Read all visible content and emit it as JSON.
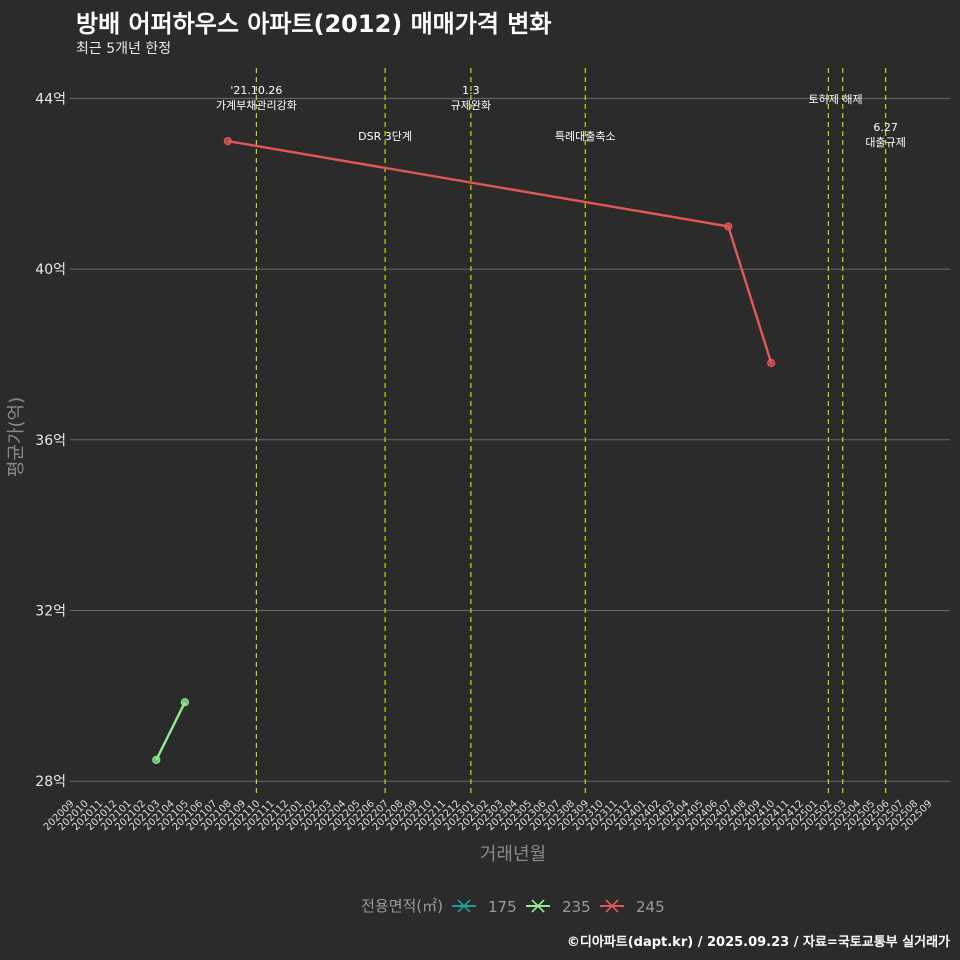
{
  "title": "방배 어퍼하우스 아파트(2012) 매매가격 변화",
  "subtitle": "최근 5개년 한정",
  "caption": "©디아파트(dapt.kr) / 2025.09.23 / 자료=국토교통부 실거래가",
  "colors": {
    "background": "#2b2b2b",
    "grid": "#6a6a6a",
    "vline": "#d4d400",
    "s175": "#1f9c96",
    "s235": "#90ee90",
    "s245": "#e05858"
  },
  "chart_data": {
    "type": "line",
    "xlabel": "거래년월",
    "ylabel": "평균가(억)",
    "categories": [
      "202009",
      "202010",
      "202011",
      "202012",
      "202101",
      "202102",
      "202103",
      "202104",
      "202105",
      "202106",
      "202107",
      "202108",
      "202109",
      "202110",
      "202111",
      "202112",
      "202201",
      "202202",
      "202203",
      "202204",
      "202205",
      "202206",
      "202207",
      "202208",
      "202209",
      "202210",
      "202211",
      "202212",
      "202301",
      "202302",
      "202303",
      "202304",
      "202305",
      "202306",
      "202307",
      "202308",
      "202309",
      "202310",
      "202311",
      "202312",
      "202401",
      "202402",
      "202403",
      "202404",
      "202405",
      "202406",
      "202407",
      "202408",
      "202409",
      "202410",
      "202411",
      "202412",
      "202501",
      "202502",
      "202503",
      "202504",
      "202505",
      "202506",
      "202507",
      "202508",
      "202509"
    ],
    "ylim": [
      27.7,
      44.9
    ],
    "yticks": [
      28,
      32,
      36,
      40,
      44
    ],
    "ytick_labels": [
      "28억",
      "32억",
      "36억",
      "40억",
      "44억"
    ],
    "series": [
      {
        "name": "175",
        "color": "#1f9c96",
        "points": []
      },
      {
        "name": "235",
        "color": "#90ee90",
        "points": [
          [
            "202103",
            28.5
          ],
          [
            "202105",
            29.85
          ]
        ]
      },
      {
        "name": "245",
        "color": "#e05858",
        "points": [
          [
            "202108",
            43.0
          ],
          [
            "202407",
            41.0
          ],
          [
            "202410",
            37.8
          ]
        ]
      }
    ],
    "legend": {
      "title": "전용면적(㎡)",
      "position": "bottom"
    },
    "annotations": [
      {
        "x": "202110",
        "lines": [
          "'21.10.26",
          "가계부채관리강화"
        ],
        "row": "top"
      },
      {
        "x": "202207",
        "lines": [
          "DSR 3단계"
        ],
        "row": "lower"
      },
      {
        "x": "202301",
        "lines": [
          "1.3",
          "규제완화"
        ],
        "row": "top"
      },
      {
        "x": "202309",
        "lines": [
          "특례대출축소"
        ],
        "row": "lower"
      },
      {
        "x": "202502",
        "lines": [],
        "row": "none"
      },
      {
        "x": "202503",
        "lines": [
          "토허제 해제"
        ],
        "row": "mid",
        "anchor_x": "202502.5"
      },
      {
        "x": "202506",
        "lines": [
          "6.27",
          "대출규제"
        ],
        "row": "low"
      }
    ]
  }
}
